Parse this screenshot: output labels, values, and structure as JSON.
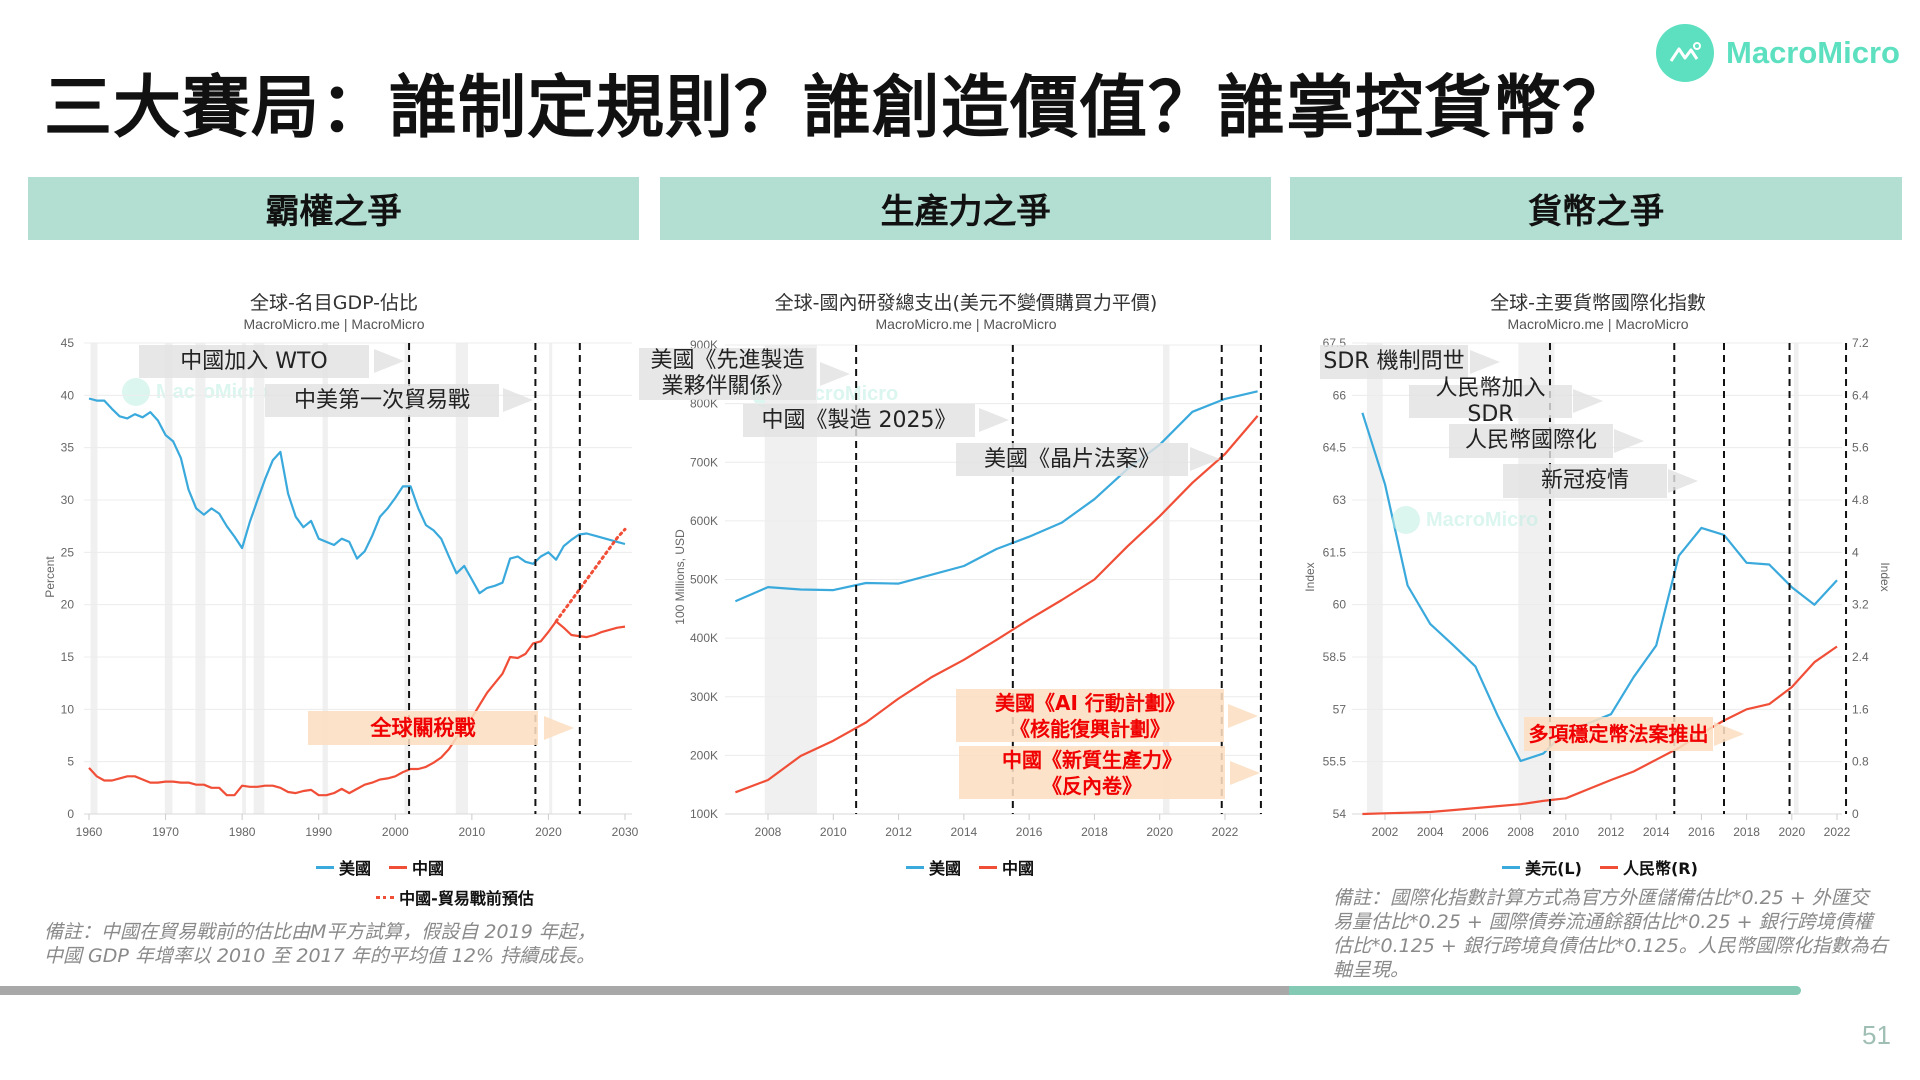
{
  "title": "三大賽局：誰制定規則？誰創造價值？誰掌控貨幣？",
  "logo": {
    "text": "MacroMicro",
    "icon": "macromicro-chart-icon"
  },
  "colors": {
    "brand": "#5ce0c0",
    "section_bg": "#b3dfd3",
    "us": "#3aa9dc",
    "china": "#f04e37",
    "highlight_bg": "#fbdec0",
    "highlight_text": "#f00000"
  },
  "sections": [
    {
      "label": "霸權之爭"
    },
    {
      "label": "生產力之爭"
    },
    {
      "label": "貨幣之爭"
    }
  ],
  "panels": [
    {
      "source": "MacroMicro.me | MacroMicro",
      "watermark": "MacroMicro",
      "annotations": [
        "中國加入 WTO",
        "中美第一次貿易戰",
        "全球關稅戰"
      ],
      "note_lines": [
        "備註：中國在貿易戰前的估比由M平方試算，假設自 2019 年起，",
        "中國 GDP 年增率以 2010 至 2017 年的平均值 12% 持續成長。"
      ]
    },
    {
      "source": "MacroMicro.me | MacroMicro",
      "watermark": "MacroMicro",
      "annotations": [
        "美國《先進製造業夥伴關係》",
        "中國《製造 2025》",
        "美國《晶片法案》",
        "美國《AI 行動計劃》\n《核能復興計劃》",
        "中國《新質生產力》\n《反內卷》"
      ]
    },
    {
      "source": "MacroMicro.me | MacroMicro",
      "watermark": "MacroMicro",
      "annotations": [
        "SDR 機制問世",
        "人民幣加入 SDR",
        "人民幣國際化",
        "新冠疫情",
        "多項穩定幣法案推出"
      ],
      "note_lines": [
        "備註：國際化指數計算方式為官方外匯儲備估比*0.25 + 外匯交",
        "易量估比*0.25 + 國際債券流通餘額估比*0.25 + 銀行跨境債權",
        "估比*0.125 + 銀行跨境負債估比*0.125。人民幣國際化指數為右",
        "軸呈現。"
      ]
    }
  ],
  "page_number": "51",
  "chart_data": [
    {
      "type": "line",
      "title": "全球-名目GDP-佔比",
      "ylabel": "Percent",
      "xlim": [
        1960,
        2030
      ],
      "ylim": [
        0,
        45
      ],
      "xticks": [
        1960,
        1970,
        1980,
        1990,
        2000,
        2010,
        2020,
        2030
      ],
      "yticks": [
        0,
        5,
        10,
        15,
        20,
        25,
        30,
        35,
        40,
        45
      ],
      "ytick_labels": [
        "0",
        "5",
        "10",
        "15",
        "20",
        "25",
        "30",
        "35",
        "40",
        "45"
      ],
      "grid": true,
      "legend": "bottom",
      "event_lines": [
        2001.8,
        2018.3,
        2024.1
      ],
      "shaded_periods": [
        [
          1960.2,
          1961.1
        ],
        [
          1969.9,
          1970.9
        ],
        [
          1973.9,
          1975.2
        ],
        [
          1980.0,
          1980.5
        ],
        [
          1981.5,
          1982.9
        ],
        [
          1990.5,
          1991.2
        ],
        [
          2001.2,
          2001.9
        ],
        [
          2007.9,
          2009.5
        ],
        [
          2020.1,
          2020.3
        ]
      ],
      "series": [
        {
          "name": "美國",
          "style": "solid",
          "color": "#3aa9dc",
          "x": [
            1960,
            1961,
            1962,
            1963,
            1964,
            1965,
            1966,
            1967,
            1968,
            1969,
            1970,
            1971,
            1972,
            1973,
            1974,
            1975,
            1976,
            1977,
            1978,
            1979,
            1980,
            1981,
            1982,
            1983,
            1984,
            1985,
            1986,
            1987,
            1988,
            1989,
            1990,
            1991,
            1992,
            1993,
            1994,
            1995,
            1996,
            1997,
            1998,
            1999,
            2000,
            2001,
            2002,
            2003,
            2004,
            2005,
            2006,
            2007,
            2008,
            2009,
            2010,
            2011,
            2012,
            2013,
            2014,
            2015,
            2016,
            2017,
            2018,
            2019,
            2020,
            2021,
            2022,
            2023,
            2024,
            2025,
            2026,
            2027,
            2028,
            2029,
            2030
          ],
          "y": [
            39.7,
            39.5,
            39.5,
            38.7,
            38.0,
            37.8,
            38.2,
            37.9,
            38.4,
            37.6,
            36.2,
            35.6,
            34.0,
            31.0,
            29.2,
            28.6,
            29.2,
            28.7,
            27.5,
            26.5,
            25.4,
            27.9,
            30.0,
            32.0,
            33.8,
            34.6,
            30.6,
            28.4,
            27.4,
            28.0,
            26.3,
            26.0,
            25.7,
            26.3,
            26.0,
            24.4,
            25.1,
            26.6,
            28.4,
            29.2,
            30.2,
            31.3,
            31.3,
            29.2,
            27.6,
            27.1,
            26.3,
            24.6,
            23.0,
            23.7,
            22.4,
            21.1,
            21.6,
            21.8,
            22.1,
            24.4,
            24.6,
            24.1,
            23.9,
            24.6,
            25.0,
            24.3,
            25.6,
            26.2,
            26.7,
            26.8,
            26.6,
            26.4,
            26.2,
            26.0,
            25.8
          ]
        },
        {
          "name": "中國",
          "style": "solid",
          "color": "#f04e37",
          "x": [
            1960,
            1961,
            1962,
            1963,
            1964,
            1965,
            1966,
            1967,
            1968,
            1969,
            1970,
            1971,
            1972,
            1973,
            1974,
            1975,
            1976,
            1977,
            1978,
            1979,
            1980,
            1981,
            1982,
            1983,
            1984,
            1985,
            1986,
            1987,
            1988,
            1989,
            1990,
            1991,
            1992,
            1993,
            1994,
            1995,
            1996,
            1997,
            1998,
            1999,
            2000,
            2001,
            2002,
            2003,
            2004,
            2005,
            2006,
            2007,
            2008,
            2009,
            2010,
            2011,
            2012,
            2013,
            2014,
            2015,
            2016,
            2017,
            2018,
            2019,
            2020,
            2021,
            2022,
            2023,
            2024,
            2025,
            2026,
            2027,
            2028,
            2029,
            2030
          ],
          "y": [
            4.4,
            3.6,
            3.2,
            3.2,
            3.4,
            3.6,
            3.6,
            3.3,
            3.0,
            3.0,
            3.1,
            3.1,
            3.0,
            3.0,
            2.8,
            2.8,
            2.5,
            2.5,
            1.8,
            1.8,
            2.7,
            2.6,
            2.6,
            2.7,
            2.7,
            2.5,
            2.1,
            2.0,
            2.2,
            2.3,
            1.8,
            1.8,
            2.0,
            2.4,
            2.0,
            2.4,
            2.8,
            3.0,
            3.3,
            3.4,
            3.6,
            4.0,
            4.3,
            4.3,
            4.5,
            4.9,
            5.4,
            6.2,
            7.3,
            8.5,
            9.2,
            10.4,
            11.6,
            12.5,
            13.4,
            15.0,
            14.9,
            15.3,
            16.3,
            16.5,
            17.4,
            18.4,
            17.8,
            17.1,
            17.0,
            16.9,
            17.1,
            17.4,
            17.6,
            17.8,
            17.9
          ]
        },
        {
          "name": "中國-貿易戰前預估",
          "style": "dotted",
          "color": "#f04e37",
          "x": [
            2021,
            2022,
            2023,
            2024,
            2025,
            2026,
            2027,
            2028,
            2029,
            2030
          ],
          "y": [
            18.4,
            19.4,
            20.4,
            21.4,
            22.4,
            23.4,
            24.4,
            25.4,
            26.4,
            27.2
          ]
        }
      ]
    },
    {
      "type": "line",
      "title": "全球-國內研發總支出(美元不變價購買力平價)",
      "ylabel": "100 Millions, USD",
      "xlim": [
        2007,
        2023
      ],
      "ylim": [
        100000,
        900000
      ],
      "xticks": [
        2008,
        2010,
        2012,
        2014,
        2016,
        2018,
        2020,
        2022
      ],
      "yticks": [
        100000,
        200000,
        300000,
        400000,
        500000,
        600000,
        700000,
        800000,
        900000
      ],
      "ytick_labels": [
        "100K",
        "200K",
        "300K",
        "400K",
        "500K",
        "600K",
        "700K",
        "800K",
        "900K"
      ],
      "grid": true,
      "legend": "bottom",
      "event_lines": [
        2010.7,
        2015.5,
        2021.9,
        2023.1
      ],
      "shaded_periods": [
        [
          2007.9,
          2009.5
        ],
        [
          2020.1,
          2020.3
        ]
      ],
      "series": [
        {
          "name": "美國",
          "style": "solid",
          "color": "#3aa9dc",
          "x": [
            2007,
            2008,
            2009,
            2010,
            2011,
            2012,
            2013,
            2014,
            2015,
            2016,
            2017,
            2018,
            2019,
            2020,
            2021,
            2022,
            2023
          ],
          "y": [
            463000,
            487000,
            483000,
            482000,
            494000,
            493000,
            508000,
            523000,
            552000,
            573000,
            597000,
            637000,
            688000,
            730000,
            786000,
            808000,
            821000
          ]
        },
        {
          "name": "中國",
          "style": "solid",
          "color": "#f04e37",
          "x": [
            2007,
            2008,
            2009,
            2010,
            2011,
            2012,
            2013,
            2014,
            2015,
            2016,
            2017,
            2018,
            2019,
            2020,
            2021,
            2022,
            2023
          ],
          "y": [
            137000,
            158000,
            199000,
            225000,
            256000,
            297000,
            333000,
            363000,
            397000,
            432000,
            465000,
            500000,
            556000,
            608000,
            665000,
            714000,
            779000
          ]
        }
      ]
    },
    {
      "type": "line",
      "title": "全球-主要貨幣國際化指數",
      "ylabel": "Index",
      "ylabel_right": "Index",
      "xlim": [
        2001,
        2022
      ],
      "ylim": [
        54,
        67.5
      ],
      "ylim_right": [
        0,
        7.2
      ],
      "xticks": [
        2002,
        2004,
        2006,
        2008,
        2010,
        2012,
        2014,
        2016,
        2018,
        2020,
        2022
      ],
      "yticks": [
        54,
        55.5,
        57,
        58.5,
        60,
        61.5,
        63,
        64.5,
        66,
        67.5
      ],
      "ytick_labels": [
        "54",
        "55.5",
        "57",
        "58.5",
        "60",
        "61.5",
        "63",
        "64.5",
        "66",
        "67.5"
      ],
      "yticks_right": [
        0,
        0.8,
        1.6,
        2.4,
        3.2,
        4,
        4.8,
        5.6,
        6.4,
        7.2
      ],
      "ytick_labels_right": [
        "0",
        "0.8",
        "1.6",
        "2.4",
        "3.2",
        "4",
        "4.8",
        "5.6",
        "6.4",
        "7.2"
      ],
      "grid": true,
      "legend": "bottom",
      "event_lines": [
        2009.3,
        2014.8,
        2017.0,
        2019.9,
        2022.4
      ],
      "shaded_periods": [
        [
          2001.2,
          2001.9
        ],
        [
          2007.9,
          2009.5
        ],
        [
          2020.1,
          2020.3
        ]
      ],
      "series": [
        {
          "name": "美元(L)",
          "axis": "left",
          "style": "solid",
          "color": "#3aa9dc",
          "x": [
            2001,
            2002,
            2003,
            2004,
            2005,
            2006,
            2007,
            2008,
            2009,
            2010,
            2011,
            2012,
            2013,
            2014,
            2015,
            2016,
            2017,
            2018,
            2019,
            2020,
            2021,
            2022
          ],
          "y": [
            65.5,
            63.45,
            60.55,
            59.45,
            58.85,
            58.23,
            56.8,
            55.52,
            55.73,
            56.37,
            56.6,
            56.86,
            57.92,
            58.83,
            61.4,
            62.2,
            62.0,
            61.2,
            61.15,
            60.5,
            60.0,
            60.7
          ]
        },
        {
          "name": "人民幣(R)",
          "axis": "right",
          "style": "solid",
          "color": "#f04e37",
          "x": [
            2001,
            2002,
            2003,
            2004,
            2005,
            2006,
            2007,
            2008,
            2009,
            2010,
            2011,
            2012,
            2013,
            2014,
            2015,
            2016,
            2017,
            2018,
            2019,
            2020,
            2021,
            2022
          ],
          "y": [
            0.0,
            0.01,
            0.02,
            0.03,
            0.06,
            0.09,
            0.12,
            0.15,
            0.2,
            0.24,
            0.38,
            0.52,
            0.65,
            0.83,
            1.01,
            1.23,
            1.43,
            1.6,
            1.68,
            1.94,
            2.32,
            2.56
          ]
        }
      ]
    }
  ]
}
